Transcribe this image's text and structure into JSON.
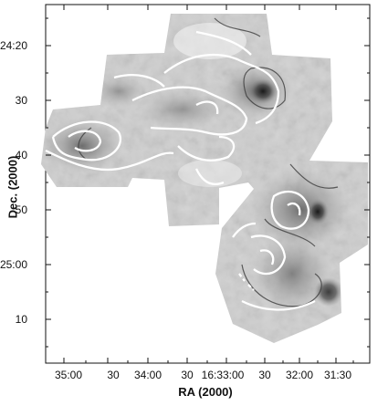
{
  "figure": {
    "xlabel": "RA (2000)",
    "ylabel": "Dec. (2000)",
    "x_ticks": [
      "35:00",
      "30",
      "34:00",
      "30",
      "16:33:00",
      "30",
      "32:00",
      "31:30"
    ],
    "y_ticks": [
      "−24:20",
      "30",
      "40",
      "50",
      "−25:00",
      "10"
    ]
  }
}
